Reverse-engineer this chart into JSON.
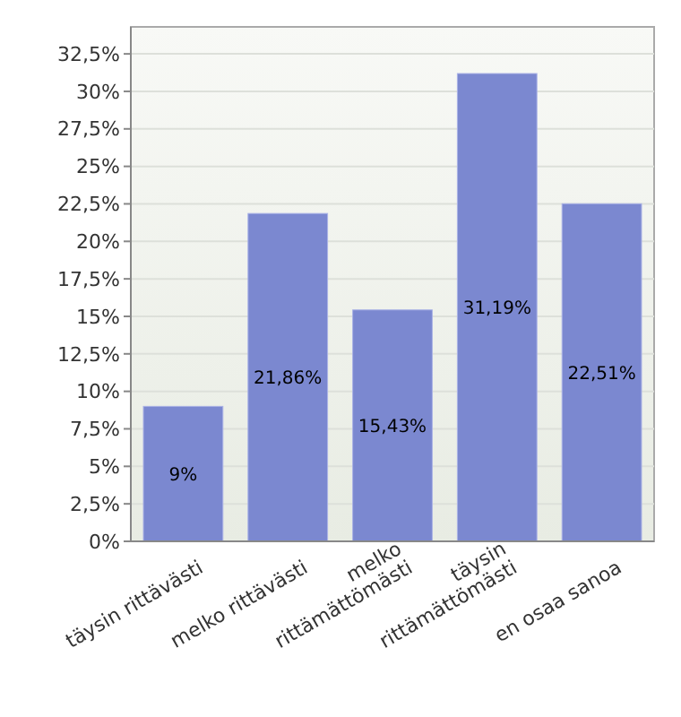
{
  "chart_data": {
    "type": "bar",
    "categories": [
      "täysin rittävästi",
      "melko rittävästi",
      "melko rittämättömästi",
      "täysin rittämättömästi",
      "en osaa sanoa"
    ],
    "values": [
      9,
      21.86,
      15.43,
      31.19,
      22.51
    ],
    "value_labels": [
      "9%",
      "21,86%",
      "15,43%",
      "31,19%",
      "22,51%"
    ],
    "color": "#7b88d0",
    "ylim": [
      0,
      34.3
    ],
    "yticks": [
      {
        "value": 0,
        "label": "0%"
      },
      {
        "value": 2.5,
        "label": "2,5%"
      },
      {
        "value": 5,
        "label": "5%"
      },
      {
        "value": 7.5,
        "label": "7,5%"
      },
      {
        "value": 10,
        "label": "10%"
      },
      {
        "value": 12.5,
        "label": "12,5%"
      },
      {
        "value": 15,
        "label": "15%"
      },
      {
        "value": 17.5,
        "label": "17,5%"
      },
      {
        "value": 20,
        "label": "20%"
      },
      {
        "value": 22.5,
        "label": "22,5%"
      },
      {
        "value": 25,
        "label": "25%"
      },
      {
        "value": 27.5,
        "label": "27,5%"
      },
      {
        "value": 30,
        "label": "30%"
      },
      {
        "value": 32.5,
        "label": "32,5%"
      }
    ],
    "grid": "y"
  }
}
